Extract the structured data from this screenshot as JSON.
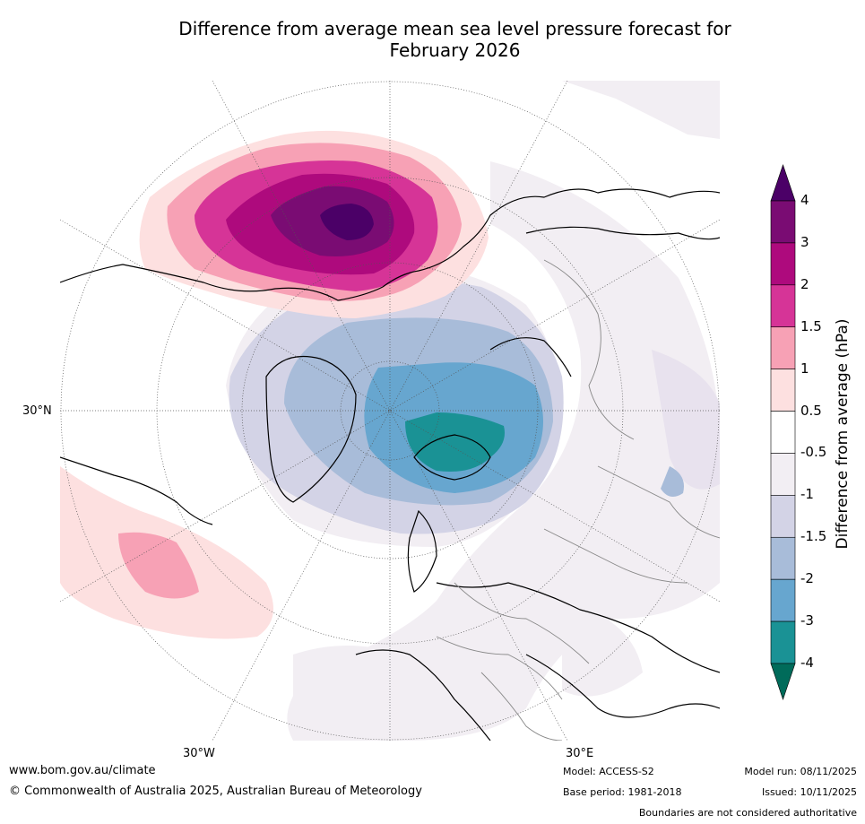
{
  "title": {
    "line1": "Difference from average mean sea level pressure forecast for",
    "line2": "February 2026"
  },
  "map_labels": {
    "lat_30n": "30°N",
    "lon_30w": "30°W",
    "lon_30e": "30°E"
  },
  "colorbar": {
    "label": "Difference from average (hPa)",
    "ticks": [
      "4",
      "3",
      "2",
      "1.5",
      "1",
      "0.5",
      "-0.5",
      "-1",
      "-1.5",
      "-2",
      "-3",
      "-4"
    ],
    "colors": [
      "#4b0067",
      "#7a0c73",
      "#ae0a7d",
      "#d63497",
      "#f7a1b5",
      "#fde0e0",
      "#ffffff",
      "#f2eef3",
      "#d3d3e6",
      "#a8bcd9",
      "#67a6cf",
      "#1a9295",
      "#006b5a"
    ]
  },
  "footer": {
    "website": "www.bom.gov.au/climate",
    "copyright": "© Commonwealth of Australia 2025, Australian Bureau of Meteorology",
    "model": "Model: ACCESS-S2",
    "base_period": "Base period: 1981-2018",
    "model_run": "Model run: 08/11/2025",
    "issued": "Issued: 10/11/2025",
    "boundaries": "Boundaries are not considered authoritative"
  }
}
